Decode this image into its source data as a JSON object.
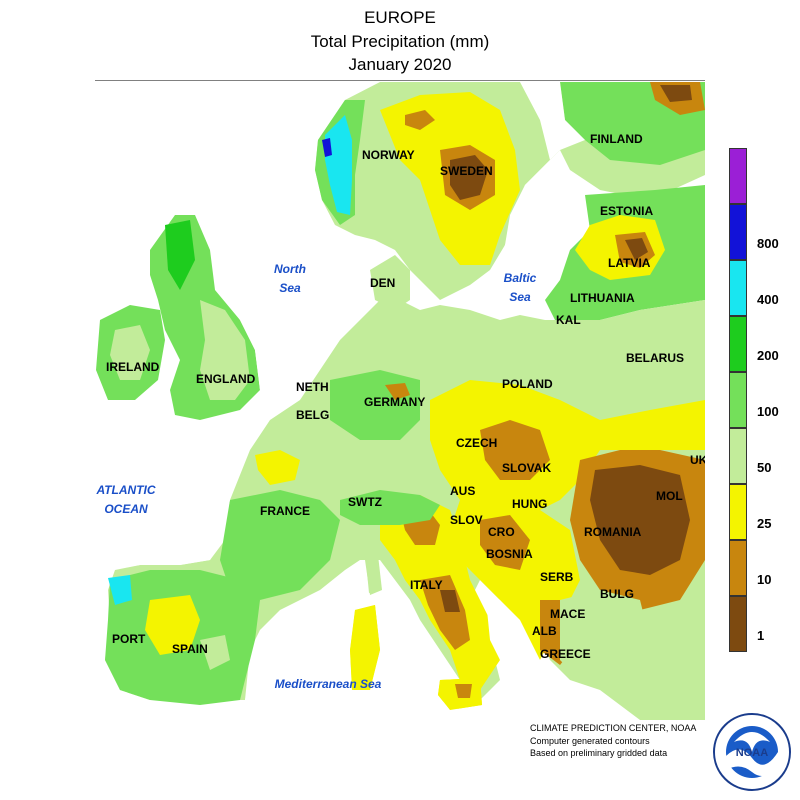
{
  "title": {
    "line1": "EUROPE",
    "line2": "Total Precipitation (mm)",
    "line3": "January 2020"
  },
  "legend": {
    "bins": [
      {
        "label": "",
        "color": "#9b1fd6"
      },
      {
        "label": "800",
        "color": "#1212d8"
      },
      {
        "label": "400",
        "color": "#19e6f0"
      },
      {
        "label": "200",
        "color": "#1ecc1e"
      },
      {
        "label": "100",
        "color": "#74e05a"
      },
      {
        "label": "50",
        "color": "#c2ec9a"
      },
      {
        "label": "25",
        "color": "#f4f400"
      },
      {
        "label": "10",
        "color": "#c8860e"
      },
      {
        "label": "1",
        "color": "#7d4a10"
      }
    ]
  },
  "labels": {
    "finland": "FINLAND",
    "norway": "NORWAY",
    "sweden": "SWEDEN",
    "estonia": "ESTONIA",
    "latvia": "LATVIA",
    "lithuania": "LITHUANIA",
    "kal": "KAL",
    "belarus": "BELARUS",
    "den": "DEN",
    "ireland": "IRELAND",
    "england": "ENGLAND",
    "neth": "NETH",
    "belg": "BELG",
    "germany": "GERMANY",
    "poland": "POLAND",
    "czech": "CZECH",
    "slovak": "SLOVAK",
    "uk": "UK",
    "mol": "MOL",
    "aus": "AUS",
    "hung": "HUNG",
    "swtz": "SWTZ",
    "slov": "SLOV",
    "cro": "CRO",
    "romania": "ROMANIA",
    "france": "FRANCE",
    "bosnia": "BOSNIA",
    "italy": "ITALY",
    "serb": "SERB",
    "bulg": "BULG",
    "mace": "MACE",
    "alb": "ALB",
    "greece": "GREECE",
    "port": "PORT",
    "spain": "SPAIN"
  },
  "seas": {
    "north_sea": [
      "North",
      "Sea"
    ],
    "baltic_sea": [
      "Baltic",
      "Sea"
    ],
    "atlantic": [
      "ATLANTIC",
      "OCEAN"
    ],
    "mediterranean": "Mediterranean Sea"
  },
  "credits": {
    "line1": "CLIMATE PREDICTION CENTER, NOAA",
    "line2": "Computer generated contours",
    "line3": "Based on preliminary gridded data"
  },
  "logo": {
    "text": "NOAA"
  }
}
